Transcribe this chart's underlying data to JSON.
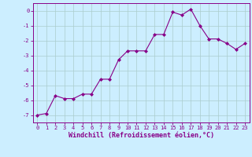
{
  "x": [
    0,
    1,
    2,
    3,
    4,
    5,
    6,
    7,
    8,
    9,
    10,
    11,
    12,
    13,
    14,
    15,
    16,
    17,
    18,
    19,
    20,
    21,
    22,
    23
  ],
  "y": [
    -7.0,
    -6.9,
    -5.7,
    -5.9,
    -5.9,
    -5.6,
    -5.6,
    -4.6,
    -4.6,
    -3.3,
    -2.7,
    -2.7,
    -2.7,
    -1.6,
    -1.6,
    -0.1,
    -0.3,
    0.1,
    -1.0,
    -1.9,
    -1.9,
    -2.2,
    -2.6,
    -2.2
  ],
  "line_color": "#880088",
  "marker": "D",
  "marker_size": 2.0,
  "bg_color": "#cceeff",
  "grid_color": "#aacccc",
  "xlabel": "Windchill (Refroidissement éolien,°C)",
  "xlabel_color": "#880088",
  "tick_color": "#880088",
  "spine_color": "#880088",
  "xlim": [
    -0.5,
    23.5
  ],
  "ylim": [
    -7.5,
    0.5
  ],
  "yticks": [
    0,
    -1,
    -2,
    -3,
    -4,
    -5,
    -6,
    -7
  ],
  "ytick_labels": [
    "0",
    "-1",
    "-2",
    "-3",
    "-4",
    "-5",
    "-6",
    "-7"
  ],
  "xticks": [
    0,
    1,
    2,
    3,
    4,
    5,
    6,
    7,
    8,
    9,
    10,
    11,
    12,
    13,
    14,
    15,
    16,
    17,
    18,
    19,
    20,
    21,
    22,
    23
  ],
  "xtick_labels": [
    "0",
    "1",
    "2",
    "3",
    "4",
    "5",
    "6",
    "7",
    "8",
    "9",
    "10",
    "11",
    "12",
    "13",
    "14",
    "15",
    "16",
    "17",
    "18",
    "19",
    "20",
    "21",
    "22",
    "23"
  ],
  "tick_fontsize": 5.0,
  "xlabel_fontsize": 6.0,
  "linewidth": 0.8
}
